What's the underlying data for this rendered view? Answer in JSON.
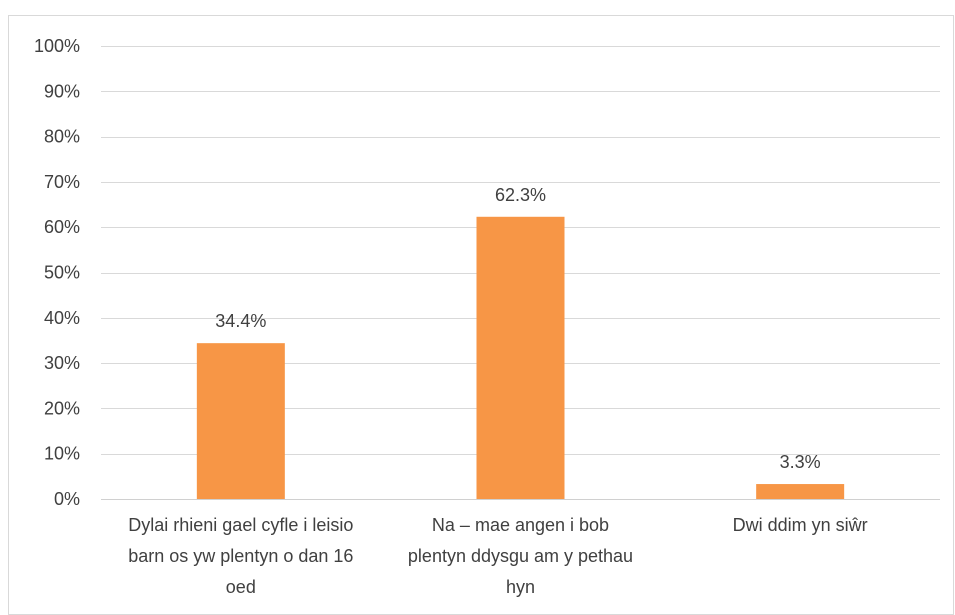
{
  "chart_data": {
    "type": "bar",
    "categories": [
      "Dylai rhieni gael cyfle i leisio barn os yw plentyn o dan 16 oed",
      "Na – mae angen i bob plentyn ddysgu am y pethau hyn",
      "Dwi ddim yn siŵr"
    ],
    "category_lines": [
      [
        "Dylai rhieni gael cyfle i leisio",
        "barn os yw plentyn o dan 16",
        "oed"
      ],
      [
        "Na – mae angen i bob",
        "plentyn ddysgu am y pethau",
        "hyn"
      ],
      [
        "Dwi ddim yn siŵr"
      ]
    ],
    "values": [
      34.4,
      62.3,
      3.3
    ],
    "data_labels": [
      "34.4%",
      "62.3%",
      "3.3%"
    ],
    "ylim": [
      0,
      100
    ],
    "y_ticks": [
      0,
      10,
      20,
      30,
      40,
      50,
      60,
      70,
      80,
      90,
      100
    ],
    "y_tick_labels": [
      "0%",
      "10%",
      "20%",
      "30%",
      "40%",
      "50%",
      "60%",
      "70%",
      "80%",
      "90%",
      "100%"
    ],
    "title": "",
    "xlabel": "",
    "ylabel": "",
    "grid": true,
    "legend": "none",
    "bar_color": "#f79646",
    "grid_color": "#d9d9d9",
    "text_color": "#404040"
  }
}
